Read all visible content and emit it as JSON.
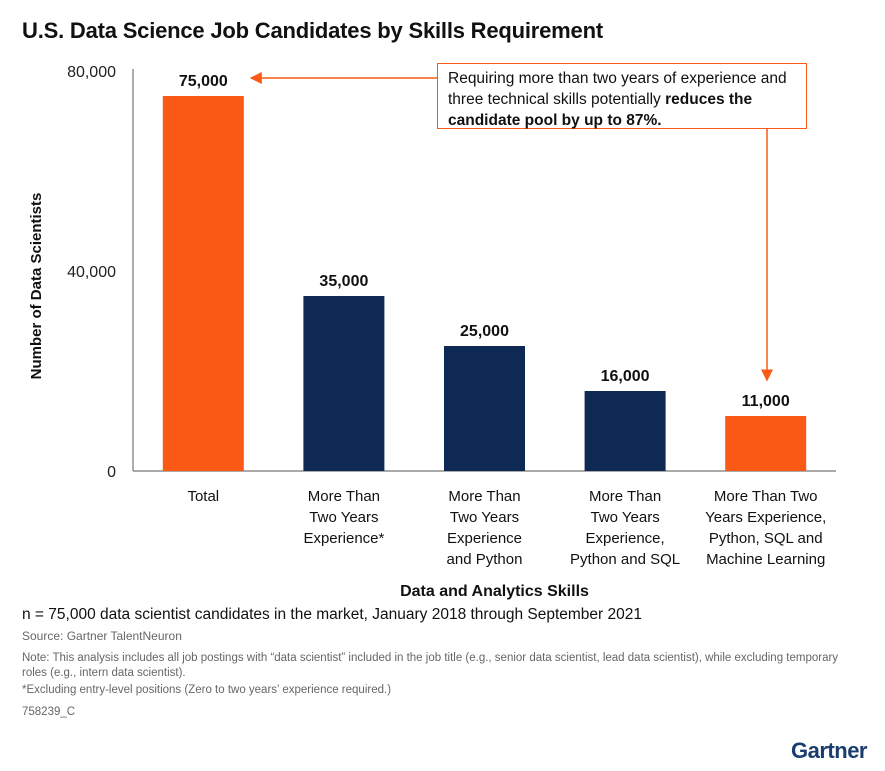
{
  "title": "U.S. Data Science Job Candidates by Skills Requirement",
  "callout": {
    "text_plain": "Requiring more than two years of experience and three technical skills potentially ",
    "text_bold": "reduces the candidate pool by up to 87%."
  },
  "colors": {
    "highlight": "#fa5a16",
    "base": "#0e2a54",
    "accent_logo": "#1a3d6d"
  },
  "chart_data": {
    "type": "bar",
    "title": "U.S. Data Science Job Candidates by Skills Requirement",
    "xlabel": "Data and Analytics Skills",
    "ylabel": "Number of Data Scientists",
    "ylim": [
      0,
      80000
    ],
    "yticks": [
      0,
      40000,
      80000
    ],
    "ytick_labels": [
      "0",
      "40,000",
      "80,000"
    ],
    "categories": [
      [
        "Total"
      ],
      [
        "More Than",
        "Two Years",
        "Experience*"
      ],
      [
        "More Than",
        "Two Years",
        "Experience",
        "and Python"
      ],
      [
        "More Than",
        "Two Years",
        "Experience,",
        "Python and SQL"
      ],
      [
        "More Than Two",
        "Years Experience,",
        "Python, SQL and",
        "Machine Learning"
      ]
    ],
    "values": [
      75000,
      35000,
      25000,
      16000,
      11000
    ],
    "value_labels": [
      "75,000",
      "35,000",
      "25,000",
      "16,000",
      "11,000"
    ],
    "highlighted": [
      true,
      false,
      false,
      false,
      true
    ],
    "grid": false
  },
  "footer": {
    "n_note": "n = 75,000 data scientist candidates in the market, January 2018 through September 2021",
    "source": "Source: Gartner TalentNeuron",
    "note": "Note: This analysis includes all job postings with “data scientist” included in the job title (e.g., senior data scientist, lead data scientist), while excluding temporary roles (e.g., intern data scientist).",
    "footnote": "*Excluding entry-level positions (Zero to two years’ experience required.)",
    "code": "758239_C"
  },
  "logo_text": "Gartner"
}
